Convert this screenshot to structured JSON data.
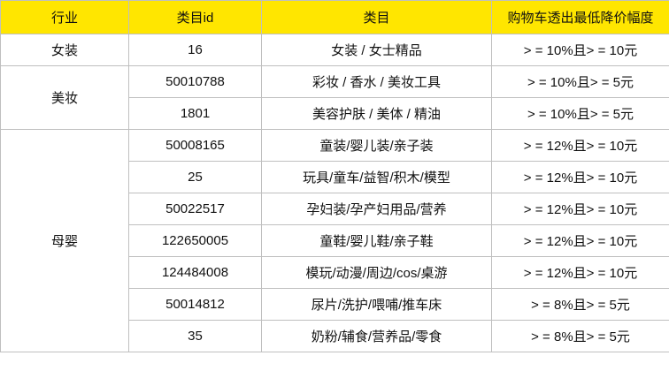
{
  "table": {
    "header": [
      "行业",
      "类目id",
      "类目",
      "购物车透出最低降价幅度"
    ],
    "groups": [
      {
        "industry": "女装",
        "rows": [
          [
            "16",
            "女装 / 女士精品",
            "> = 10%且> = 10元"
          ]
        ]
      },
      {
        "industry": "美妆",
        "rows": [
          [
            "50010788",
            "彩妆 / 香水 / 美妆工具",
            "> = 10%且> = 5元"
          ],
          [
            "1801",
            "美容护肤 / 美体 / 精油",
            "> = 10%且> = 5元"
          ]
        ]
      },
      {
        "industry": "母婴",
        "rows": [
          [
            "50008165",
            "童装/婴儿装/亲子装",
            "> = 12%且> = 10元"
          ],
          [
            "25",
            "玩具/童车/益智/积木/模型",
            "> = 12%且> = 10元"
          ],
          [
            "50022517",
            "孕妇装/孕产妇用品/营养",
            "> = 12%且> = 10元"
          ],
          [
            "122650005",
            "童鞋/婴儿鞋/亲子鞋",
            "> = 12%且> = 10元"
          ],
          [
            "124484008",
            "模玩/动漫/周边/cos/桌游",
            "> = 12%且> = 10元"
          ],
          [
            "50014812",
            "尿片/洗护/喂哺/推车床",
            "> = 8%且> = 5元"
          ],
          [
            "35",
            "奶粉/辅食/营养品/零食",
            "> = 8%且> = 5元"
          ]
        ]
      }
    ]
  }
}
